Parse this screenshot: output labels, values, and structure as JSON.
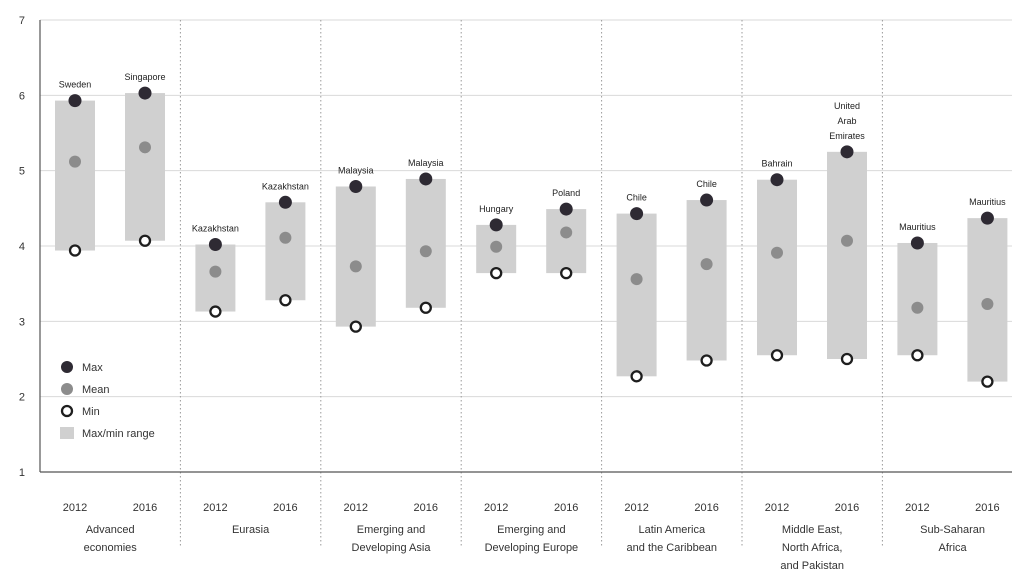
{
  "chart_data": {
    "type": "range",
    "title": "",
    "xlabel": "",
    "ylabel": "",
    "ylim": [
      1,
      7
    ],
    "yticks": [
      1,
      2,
      3,
      4,
      5,
      6,
      7
    ],
    "grid": true,
    "legend_position": "bottom-left",
    "colors": {
      "max": "#2e2a33",
      "mean": "#8c8c8c",
      "min": "#ffffff",
      "range": "#d0d0d0"
    },
    "legend": [
      {
        "key": "max",
        "label": "Max"
      },
      {
        "key": "mean",
        "label": "Mean"
      },
      {
        "key": "min",
        "label": "Min"
      },
      {
        "key": "range",
        "label": "Max/min range"
      }
    ],
    "groups": [
      {
        "label": [
          "Advanced",
          "economies"
        ],
        "points": [
          {
            "year": "2012",
            "max": 5.93,
            "mean": 5.12,
            "min": 3.94,
            "max_label": [
              "Sweden"
            ]
          },
          {
            "year": "2016",
            "max": 6.03,
            "mean": 5.31,
            "min": 4.07,
            "max_label": [
              "Singapore"
            ]
          }
        ]
      },
      {
        "label": [
          "Eurasia"
        ],
        "points": [
          {
            "year": "2012",
            "max": 4.02,
            "mean": 3.66,
            "min": 3.13,
            "max_label": [
              "Kazakhstan"
            ]
          },
          {
            "year": "2016",
            "max": 4.58,
            "mean": 4.11,
            "min": 3.28,
            "max_label": [
              "Kazakhstan"
            ]
          }
        ]
      },
      {
        "label": [
          "Emerging and",
          "Developing Asia"
        ],
        "points": [
          {
            "year": "2012",
            "max": 4.79,
            "mean": 3.73,
            "min": 2.93,
            "max_label": [
              "Malaysia"
            ]
          },
          {
            "year": "2016",
            "max": 4.89,
            "mean": 3.93,
            "min": 3.18,
            "max_label": [
              "Malaysia"
            ]
          }
        ]
      },
      {
        "label": [
          "Emerging and",
          "Developing Europe"
        ],
        "points": [
          {
            "year": "2012",
            "max": 4.28,
            "mean": 3.99,
            "min": 3.64,
            "max_label": [
              "Hungary"
            ]
          },
          {
            "year": "2016",
            "max": 4.49,
            "mean": 4.18,
            "min": 3.64,
            "max_label": [
              "Poland"
            ]
          }
        ]
      },
      {
        "label": [
          "Latin America",
          "and the Caribbean"
        ],
        "points": [
          {
            "year": "2012",
            "max": 4.43,
            "mean": 3.56,
            "min": 2.27,
            "max_label": [
              "Chile"
            ]
          },
          {
            "year": "2016",
            "max": 4.61,
            "mean": 3.76,
            "min": 2.48,
            "max_label": [
              "Chile"
            ]
          }
        ]
      },
      {
        "label": [
          "Middle East,",
          "North Africa,",
          "and Pakistan"
        ],
        "points": [
          {
            "year": "2012",
            "max": 4.88,
            "mean": 3.91,
            "min": 2.55,
            "max_label": [
              "Bahrain"
            ]
          },
          {
            "year": "2016",
            "max": 5.25,
            "mean": 4.07,
            "min": 2.5,
            "max_label": [
              "United",
              "Arab",
              "Emirates"
            ]
          }
        ]
      },
      {
        "label": [
          "Sub-Saharan",
          "Africa"
        ],
        "points": [
          {
            "year": "2012",
            "max": 4.04,
            "mean": 3.18,
            "min": 2.55,
            "max_label": [
              "Mauritius"
            ]
          },
          {
            "year": "2016",
            "max": 4.37,
            "mean": 3.23,
            "min": 2.2,
            "max_label": [
              "Mauritius"
            ]
          }
        ]
      }
    ]
  }
}
